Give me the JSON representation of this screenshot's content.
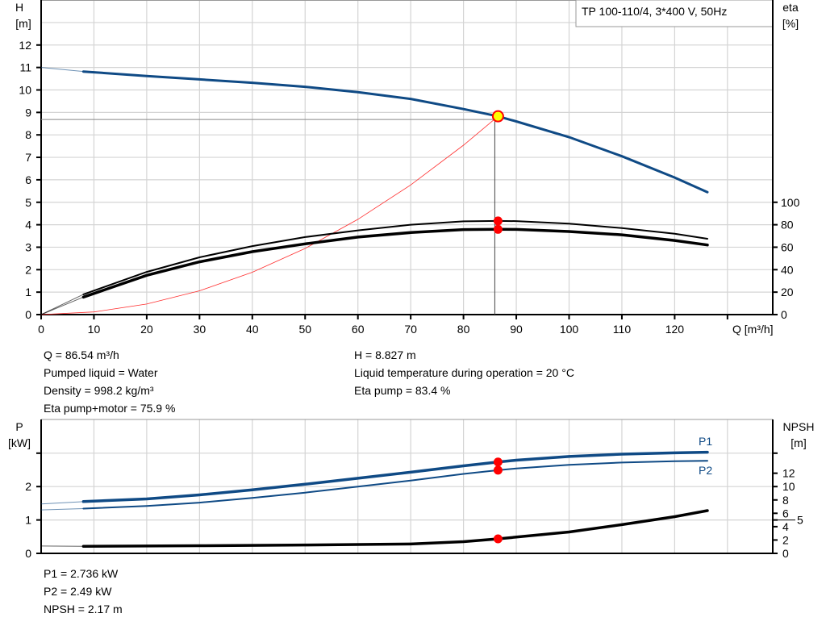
{
  "chart_data": [
    {
      "type": "line",
      "title_box": "TP 100-110/4, 3*400 V, 50Hz",
      "xlabel": "Q [m³/h]",
      "ylabel_left": [
        "H",
        "[m]"
      ],
      "ylabel_right": [
        "eta",
        "[%]"
      ],
      "xlim": [
        0,
        138
      ],
      "ylim_left": [
        0,
        14
      ],
      "ylim_right_eta": [
        0,
        100
      ],
      "x_ticks": [
        0,
        10,
        20,
        30,
        40,
        50,
        60,
        70,
        80,
        90,
        100,
        110,
        120
      ],
      "y_ticks_left": [
        0,
        1,
        2,
        3,
        4,
        5,
        6,
        7,
        8,
        9,
        10,
        11,
        12
      ],
      "y_ticks_right": [
        0,
        20,
        40,
        60,
        80,
        100
      ],
      "grid": true,
      "series": [
        {
          "key": "H",
          "axis": "left",
          "color": "#0f4a85",
          "x": [
            8,
            20,
            30,
            40,
            50,
            60,
            70,
            80,
            86.54,
            90,
            100,
            110,
            120,
            126.2
          ],
          "y": [
            10.82,
            10.62,
            10.47,
            10.32,
            10.14,
            9.9,
            9.6,
            9.15,
            8.827,
            8.6,
            7.9,
            7.05,
            6.1,
            5.45
          ],
          "extrapolated_from": [
            0,
            11.0
          ]
        },
        {
          "key": "eta_pump",
          "axis": "right",
          "color": "#000000",
          "x": [
            8,
            20,
            30,
            40,
            50,
            60,
            70,
            80,
            86.54,
            90,
            100,
            110,
            120,
            126.2
          ],
          "y": [
            18,
            38,
            51,
            61,
            69,
            75,
            80,
            83,
            83.4,
            83.2,
            81,
            77,
            72,
            67.5
          ],
          "extrapolated_from": [
            0,
            0
          ]
        },
        {
          "key": "eta_pump_motor",
          "axis": "right",
          "color": "#000000",
          "x": [
            8,
            20,
            30,
            40,
            50,
            60,
            70,
            80,
            86.54,
            90,
            100,
            110,
            120,
            126.2
          ],
          "y": [
            15.6,
            35,
            47,
            56,
            63,
            69,
            73,
            75.7,
            75.9,
            75.8,
            74,
            71,
            66,
            62
          ],
          "extrapolated_from": [
            0,
            0
          ]
        },
        {
          "key": "system_curve",
          "axis": "left",
          "color": "#ff3030",
          "x": [
            0,
            10,
            20,
            30,
            40,
            50,
            60,
            70,
            80,
            86.54
          ],
          "y": [
            0,
            0.118,
            0.471,
            1.06,
            1.885,
            2.945,
            4.24,
            5.77,
            7.54,
            8.827
          ]
        }
      ],
      "operating_point": {
        "q": 86.54,
        "h": 8.827,
        "eta_pump": 83.4,
        "eta_total": 75.9
      }
    },
    {
      "type": "line",
      "ylabel_left": [
        "P",
        "[kW]"
      ],
      "ylabel_right": [
        "NPSH",
        "[m]"
      ],
      "xlim": [
        0,
        138
      ],
      "ylim_left": [
        0,
        4
      ],
      "ylim_right": [
        0,
        20
      ],
      "y_ticks_left": [
        0,
        1,
        2
      ],
      "y_ticks_right": [
        0,
        2,
        4,
        5,
        6,
        8,
        10,
        12
      ],
      "grid": true,
      "series": [
        {
          "name": "P1",
          "axis": "left",
          "color": "#0f4a85",
          "x": [
            8,
            20,
            30,
            40,
            50,
            60,
            70,
            80,
            86.54,
            90,
            100,
            110,
            120,
            126.2
          ],
          "y": [
            1.55,
            1.63,
            1.75,
            1.9,
            2.07,
            2.25,
            2.43,
            2.62,
            2.736,
            2.79,
            2.9,
            2.97,
            3.01,
            3.03
          ],
          "extrapolated_from": [
            0,
            1.48
          ]
        },
        {
          "name": "P2",
          "axis": "left",
          "color": "#0f4a85",
          "x": [
            8,
            20,
            30,
            40,
            50,
            60,
            70,
            80,
            86.54,
            90,
            100,
            110,
            120,
            126.2
          ],
          "y": [
            1.34,
            1.42,
            1.52,
            1.66,
            1.82,
            2.0,
            2.18,
            2.38,
            2.49,
            2.54,
            2.65,
            2.72,
            2.76,
            2.77
          ],
          "extrapolated_from": [
            0,
            1.3
          ]
        },
        {
          "key": "NPSH",
          "axis": "right",
          "color": "#000000",
          "x": [
            8,
            30,
            50,
            70,
            80,
            86.54,
            100,
            110,
            120,
            126.2
          ],
          "y": [
            1.05,
            1.15,
            1.25,
            1.4,
            1.75,
            2.17,
            3.2,
            4.3,
            5.5,
            6.4
          ],
          "extrapolated_from": [
            0,
            1.1
          ]
        }
      ]
    }
  ],
  "info_top": {
    "left": [
      "Q = 86.54 m³/h",
      "Pumped liquid = Water",
      "Density = 998.2 kg/m³",
      "Eta pump+motor = 75.9 %"
    ],
    "right": [
      "H = 8.827 m",
      "Liquid temperature during operation = 20 °C",
      "Eta pump = 83.4 %"
    ]
  },
  "info_bottom": [
    "P1 = 2.736 kW",
    "P2 = 2.49 kW",
    "NPSH = 2.17 m"
  ]
}
